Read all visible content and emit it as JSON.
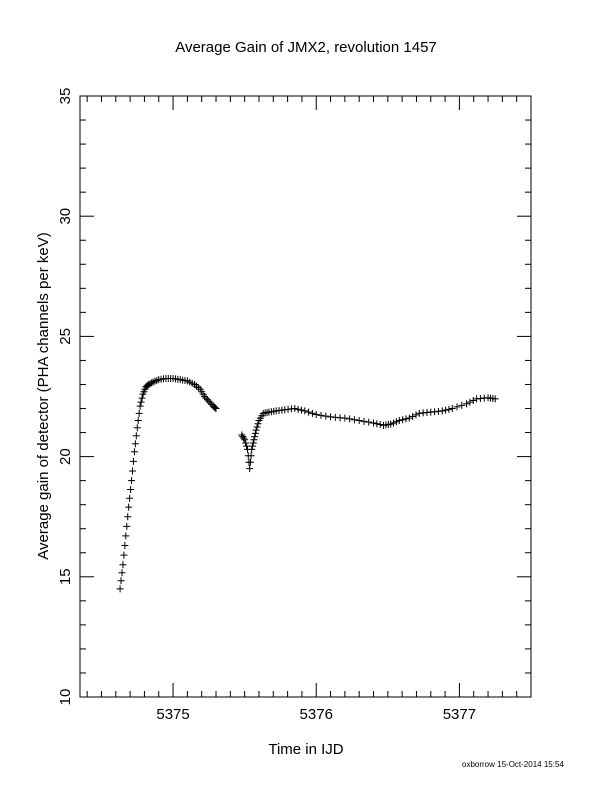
{
  "chart_data": {
    "type": "scatter",
    "title": "Average Gain of JMX2, revolution 1457",
    "xlabel": "Time in IJD",
    "ylabel": "Average gain of detector (PHA channels per keV)",
    "xlim": [
      5374.35,
      5377.5
    ],
    "ylim": [
      10,
      35
    ],
    "xticks": [
      5375,
      5376,
      5377
    ],
    "xtick_labels": [
      "5375",
      "5376",
      "5377"
    ],
    "yticks": [
      10,
      15,
      20,
      25,
      30,
      35
    ],
    "ytick_labels": [
      "10",
      "15",
      "20",
      "25",
      "30",
      "35"
    ],
    "marker": "plus",
    "grid": false,
    "series": [
      {
        "x": [
          5374.63,
          5374.65,
          5374.67,
          5374.69,
          5374.71,
          5374.73,
          5374.75,
          5374.77,
          5374.79,
          5374.81,
          5374.83,
          5374.86,
          5374.9,
          5374.95,
          5375.0,
          5375.05,
          5375.1,
          5375.15,
          5375.19,
          5375.22,
          5375.25,
          5375.28,
          5375.3
        ],
        "y": [
          14.5,
          15.5,
          16.7,
          17.9,
          19.0,
          20.2,
          21.2,
          22.1,
          22.6,
          22.9,
          23.0,
          23.1,
          23.2,
          23.25,
          23.25,
          23.2,
          23.15,
          23.0,
          22.8,
          22.5,
          22.3,
          22.1,
          22.0
        ]
      },
      {
        "x": [
          5375.48,
          5375.5,
          5375.52,
          5375.535,
          5375.55,
          5375.565,
          5375.58,
          5375.6,
          5375.63,
          5375.67,
          5375.72,
          5375.78,
          5375.85,
          5375.92,
          5376.0,
          5376.1,
          5376.2,
          5376.3,
          5376.4,
          5376.47,
          5376.52,
          5376.58,
          5376.65,
          5376.72,
          5376.8,
          5376.88,
          5376.95,
          5377.05,
          5377.12,
          5377.2,
          5377.25
        ],
        "y": [
          20.9,
          20.7,
          20.3,
          19.5,
          20.3,
          20.7,
          21.1,
          21.5,
          21.8,
          21.85,
          21.9,
          21.95,
          22.0,
          21.9,
          21.75,
          21.65,
          21.6,
          21.5,
          21.4,
          21.3,
          21.35,
          21.5,
          21.6,
          21.8,
          21.85,
          21.9,
          22.0,
          22.2,
          22.4,
          22.45,
          22.4
        ]
      }
    ]
  },
  "footer": "oxborrow 15-Oct-2014 15:54"
}
